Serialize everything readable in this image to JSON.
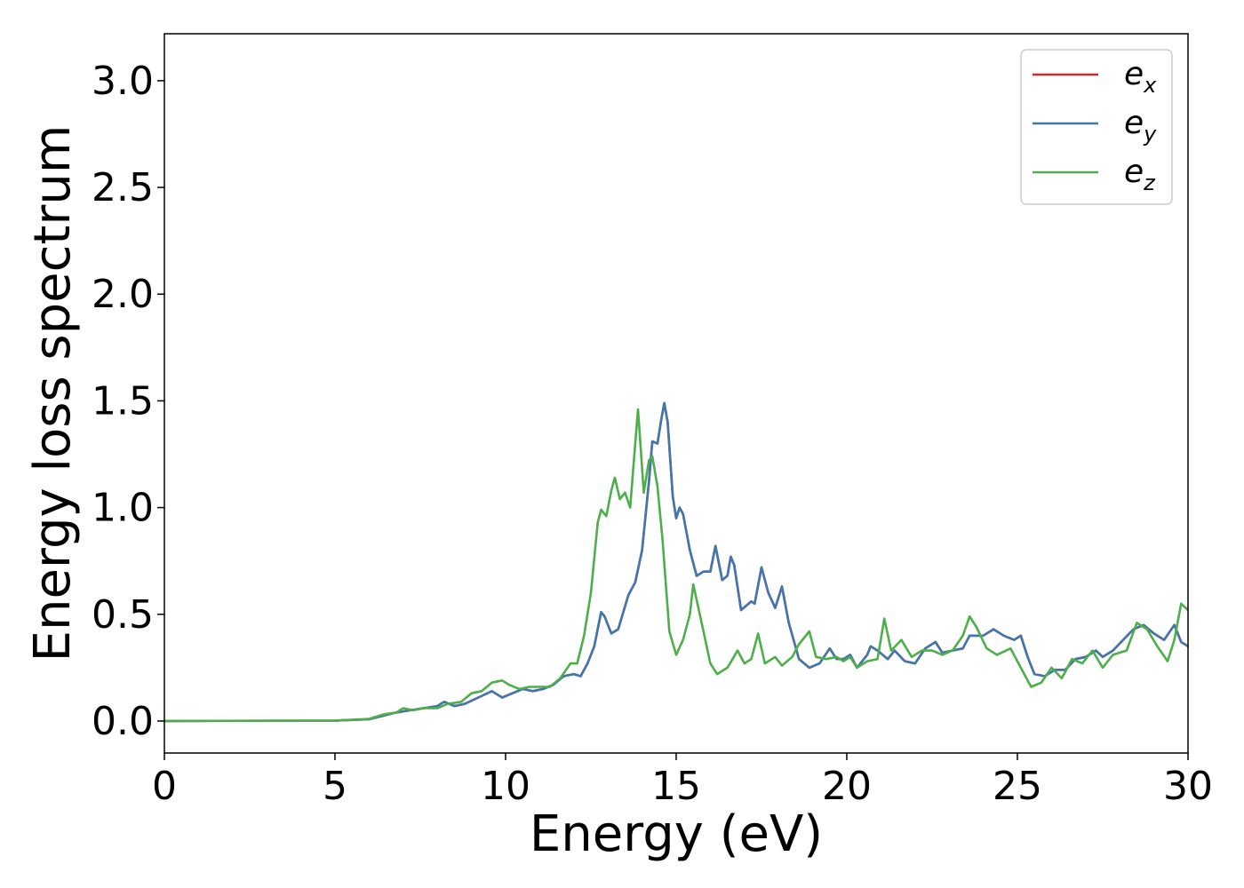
{
  "chart_data": {
    "type": "line",
    "title": "",
    "xlabel": "Energy (eV)",
    "ylabel": "Energy loss spectrum",
    "xlim": [
      0,
      30
    ],
    "ylim": [
      -0.15,
      3.22
    ],
    "x_ticks": [
      0,
      5,
      10,
      15,
      20,
      25,
      30
    ],
    "x_tick_labels": [
      "0",
      "5",
      "10",
      "15",
      "20",
      "25",
      "30"
    ],
    "y_ticks": [
      0.0,
      0.5,
      1.0,
      1.5,
      2.0,
      2.5,
      3.0
    ],
    "y_tick_labels": [
      "0.0",
      "0.5",
      "1.0",
      "1.5",
      "2.0",
      "2.5",
      "3.0"
    ],
    "grid": false,
    "legend_position": "top-right",
    "legend": [
      {
        "base": "e",
        "sub": "x",
        "color": "#d62728"
      },
      {
        "base": "e",
        "sub": "y",
        "color": "#3f77ae"
      },
      {
        "base": "e",
        "sub": "z",
        "color": "#4daf4a"
      }
    ],
    "series": [
      {
        "key": "ex",
        "color": "#d62728",
        "points": [
          [
            0,
            0.0
          ],
          [
            5,
            0.002
          ],
          [
            6,
            0.008
          ],
          [
            6.3,
            0.02
          ],
          [
            6.8,
            0.04
          ],
          [
            7.2,
            0.05
          ],
          [
            7.6,
            0.06
          ],
          [
            8.0,
            0.07
          ],
          [
            8.2,
            0.09
          ],
          [
            8.5,
            0.07
          ],
          [
            8.8,
            0.08
          ],
          [
            9.2,
            0.11
          ],
          [
            9.6,
            0.14
          ],
          [
            9.9,
            0.11
          ],
          [
            10.2,
            0.13
          ],
          [
            10.5,
            0.15
          ],
          [
            10.8,
            0.14
          ],
          [
            11.1,
            0.15
          ],
          [
            11.4,
            0.17
          ],
          [
            11.7,
            0.21
          ],
          [
            12.0,
            0.22
          ],
          [
            12.2,
            0.21
          ],
          [
            12.4,
            0.27
          ],
          [
            12.6,
            0.35
          ],
          [
            12.8,
            0.51
          ],
          [
            12.9,
            0.49
          ],
          [
            13.1,
            0.41
          ],
          [
            13.3,
            0.43
          ],
          [
            13.6,
            0.59
          ],
          [
            13.8,
            0.65
          ],
          [
            14.0,
            0.8
          ],
          [
            14.2,
            1.12
          ],
          [
            14.3,
            1.31
          ],
          [
            14.45,
            1.3
          ],
          [
            14.55,
            1.4
          ],
          [
            14.65,
            1.49
          ],
          [
            14.75,
            1.4
          ],
          [
            14.9,
            1.05
          ],
          [
            15.0,
            0.95
          ],
          [
            15.1,
            1.0
          ],
          [
            15.2,
            0.97
          ],
          [
            15.4,
            0.8
          ],
          [
            15.6,
            0.68
          ],
          [
            15.8,
            0.7
          ],
          [
            16.0,
            0.7
          ],
          [
            16.15,
            0.82
          ],
          [
            16.35,
            0.66
          ],
          [
            16.5,
            0.68
          ],
          [
            16.6,
            0.77
          ],
          [
            16.7,
            0.73
          ],
          [
            16.9,
            0.52
          ],
          [
            17.2,
            0.56
          ],
          [
            17.3,
            0.55
          ],
          [
            17.5,
            0.72
          ],
          [
            17.7,
            0.6
          ],
          [
            17.9,
            0.53
          ],
          [
            18.1,
            0.63
          ],
          [
            18.3,
            0.46
          ],
          [
            18.6,
            0.29
          ],
          [
            18.9,
            0.25
          ],
          [
            19.2,
            0.27
          ],
          [
            19.5,
            0.34
          ],
          [
            19.7,
            0.29
          ],
          [
            19.9,
            0.29
          ],
          [
            20.1,
            0.31
          ],
          [
            20.3,
            0.25
          ],
          [
            20.6,
            0.31
          ],
          [
            20.7,
            0.35
          ],
          [
            20.9,
            0.33
          ],
          [
            21.2,
            0.29
          ],
          [
            21.4,
            0.33
          ],
          [
            21.7,
            0.28
          ],
          [
            22.0,
            0.27
          ],
          [
            22.3,
            0.34
          ],
          [
            22.6,
            0.37
          ],
          [
            22.8,
            0.32
          ],
          [
            23.1,
            0.33
          ],
          [
            23.4,
            0.34
          ],
          [
            23.6,
            0.4
          ],
          [
            24.0,
            0.4
          ],
          [
            24.3,
            0.43
          ],
          [
            24.6,
            0.4
          ],
          [
            24.9,
            0.38
          ],
          [
            25.1,
            0.4
          ],
          [
            25.3,
            0.3
          ],
          [
            25.5,
            0.22
          ],
          [
            25.8,
            0.21
          ],
          [
            26.1,
            0.24
          ],
          [
            26.4,
            0.24
          ],
          [
            26.7,
            0.29
          ],
          [
            27.0,
            0.3
          ],
          [
            27.3,
            0.33
          ],
          [
            27.5,
            0.3
          ],
          [
            27.8,
            0.33
          ],
          [
            28.1,
            0.38
          ],
          [
            28.4,
            0.43
          ],
          [
            28.7,
            0.45
          ],
          [
            29.0,
            0.41
          ],
          [
            29.3,
            0.38
          ],
          [
            29.6,
            0.45
          ],
          [
            29.8,
            0.37
          ],
          [
            30.0,
            0.35
          ]
        ]
      },
      {
        "key": "ey",
        "color": "#3f77ae",
        "points": [
          [
            0,
            0.0
          ],
          [
            5,
            0.002
          ],
          [
            6,
            0.008
          ],
          [
            6.3,
            0.02
          ],
          [
            6.8,
            0.04
          ],
          [
            7.2,
            0.05
          ],
          [
            7.6,
            0.06
          ],
          [
            8.0,
            0.07
          ],
          [
            8.2,
            0.09
          ],
          [
            8.5,
            0.07
          ],
          [
            8.8,
            0.08
          ],
          [
            9.2,
            0.11
          ],
          [
            9.6,
            0.14
          ],
          [
            9.9,
            0.11
          ],
          [
            10.2,
            0.13
          ],
          [
            10.5,
            0.15
          ],
          [
            10.8,
            0.14
          ],
          [
            11.1,
            0.15
          ],
          [
            11.4,
            0.17
          ],
          [
            11.7,
            0.21
          ],
          [
            12.0,
            0.22
          ],
          [
            12.2,
            0.21
          ],
          [
            12.4,
            0.27
          ],
          [
            12.6,
            0.35
          ],
          [
            12.8,
            0.51
          ],
          [
            12.9,
            0.49
          ],
          [
            13.1,
            0.41
          ],
          [
            13.3,
            0.43
          ],
          [
            13.6,
            0.59
          ],
          [
            13.8,
            0.65
          ],
          [
            14.0,
            0.8
          ],
          [
            14.2,
            1.12
          ],
          [
            14.3,
            1.31
          ],
          [
            14.45,
            1.3
          ],
          [
            14.55,
            1.4
          ],
          [
            14.65,
            1.49
          ],
          [
            14.75,
            1.4
          ],
          [
            14.9,
            1.05
          ],
          [
            15.0,
            0.95
          ],
          [
            15.1,
            1.0
          ],
          [
            15.2,
            0.97
          ],
          [
            15.4,
            0.8
          ],
          [
            15.6,
            0.68
          ],
          [
            15.8,
            0.7
          ],
          [
            16.0,
            0.7
          ],
          [
            16.15,
            0.82
          ],
          [
            16.35,
            0.66
          ],
          [
            16.5,
            0.68
          ],
          [
            16.6,
            0.77
          ],
          [
            16.7,
            0.73
          ],
          [
            16.9,
            0.52
          ],
          [
            17.2,
            0.56
          ],
          [
            17.3,
            0.55
          ],
          [
            17.5,
            0.72
          ],
          [
            17.7,
            0.6
          ],
          [
            17.9,
            0.53
          ],
          [
            18.1,
            0.63
          ],
          [
            18.3,
            0.46
          ],
          [
            18.6,
            0.29
          ],
          [
            18.9,
            0.25
          ],
          [
            19.2,
            0.27
          ],
          [
            19.5,
            0.34
          ],
          [
            19.7,
            0.29
          ],
          [
            19.9,
            0.29
          ],
          [
            20.1,
            0.31
          ],
          [
            20.3,
            0.25
          ],
          [
            20.6,
            0.31
          ],
          [
            20.7,
            0.35
          ],
          [
            20.9,
            0.33
          ],
          [
            21.2,
            0.29
          ],
          [
            21.4,
            0.33
          ],
          [
            21.7,
            0.28
          ],
          [
            22.0,
            0.27
          ],
          [
            22.3,
            0.34
          ],
          [
            22.6,
            0.37
          ],
          [
            22.8,
            0.32
          ],
          [
            23.1,
            0.33
          ],
          [
            23.4,
            0.34
          ],
          [
            23.6,
            0.4
          ],
          [
            24.0,
            0.4
          ],
          [
            24.3,
            0.43
          ],
          [
            24.6,
            0.4
          ],
          [
            24.9,
            0.38
          ],
          [
            25.1,
            0.4
          ],
          [
            25.3,
            0.3
          ],
          [
            25.5,
            0.22
          ],
          [
            25.8,
            0.21
          ],
          [
            26.1,
            0.24
          ],
          [
            26.4,
            0.24
          ],
          [
            26.7,
            0.29
          ],
          [
            27.0,
            0.3
          ],
          [
            27.3,
            0.33
          ],
          [
            27.5,
            0.3
          ],
          [
            27.8,
            0.33
          ],
          [
            28.1,
            0.38
          ],
          [
            28.4,
            0.43
          ],
          [
            28.7,
            0.45
          ],
          [
            29.0,
            0.41
          ],
          [
            29.3,
            0.38
          ],
          [
            29.6,
            0.45
          ],
          [
            29.8,
            0.37
          ],
          [
            30.0,
            0.35
          ]
        ]
      },
      {
        "key": "ez",
        "color": "#4daf4a",
        "points": [
          [
            0,
            0.0
          ],
          [
            5,
            0.002
          ],
          [
            6,
            0.01
          ],
          [
            6.4,
            0.03
          ],
          [
            6.8,
            0.04
          ],
          [
            7.0,
            0.06
          ],
          [
            7.3,
            0.05
          ],
          [
            7.6,
            0.06
          ],
          [
            8.0,
            0.06
          ],
          [
            8.3,
            0.08
          ],
          [
            8.7,
            0.09
          ],
          [
            9.0,
            0.13
          ],
          [
            9.3,
            0.14
          ],
          [
            9.6,
            0.18
          ],
          [
            9.9,
            0.19
          ],
          [
            10.1,
            0.17
          ],
          [
            10.4,
            0.15
          ],
          [
            10.7,
            0.16
          ],
          [
            11.0,
            0.16
          ],
          [
            11.3,
            0.16
          ],
          [
            11.6,
            0.2
          ],
          [
            11.9,
            0.27
          ],
          [
            12.1,
            0.27
          ],
          [
            12.3,
            0.4
          ],
          [
            12.5,
            0.6
          ],
          [
            12.7,
            0.93
          ],
          [
            12.8,
            0.99
          ],
          [
            12.95,
            0.96
          ],
          [
            13.1,
            1.08
          ],
          [
            13.2,
            1.14
          ],
          [
            13.35,
            1.04
          ],
          [
            13.5,
            1.07
          ],
          [
            13.65,
            1.0
          ],
          [
            13.8,
            1.3
          ],
          [
            13.88,
            1.46
          ],
          [
            13.95,
            1.3
          ],
          [
            14.05,
            1.07
          ],
          [
            14.2,
            1.22
          ],
          [
            14.3,
            1.24
          ],
          [
            14.45,
            1.1
          ],
          [
            14.6,
            0.85
          ],
          [
            14.8,
            0.42
          ],
          [
            15.0,
            0.31
          ],
          [
            15.2,
            0.38
          ],
          [
            15.4,
            0.5
          ],
          [
            15.5,
            0.64
          ],
          [
            15.65,
            0.53
          ],
          [
            15.8,
            0.42
          ],
          [
            16.0,
            0.27
          ],
          [
            16.2,
            0.22
          ],
          [
            16.5,
            0.25
          ],
          [
            16.8,
            0.33
          ],
          [
            17.0,
            0.27
          ],
          [
            17.2,
            0.29
          ],
          [
            17.4,
            0.41
          ],
          [
            17.6,
            0.27
          ],
          [
            17.9,
            0.3
          ],
          [
            18.1,
            0.26
          ],
          [
            18.4,
            0.3
          ],
          [
            18.6,
            0.36
          ],
          [
            18.9,
            0.42
          ],
          [
            19.1,
            0.3
          ],
          [
            19.4,
            0.29
          ],
          [
            19.7,
            0.3
          ],
          [
            19.9,
            0.28
          ],
          [
            20.1,
            0.3
          ],
          [
            20.3,
            0.25
          ],
          [
            20.6,
            0.28
          ],
          [
            20.9,
            0.29
          ],
          [
            21.1,
            0.48
          ],
          [
            21.3,
            0.33
          ],
          [
            21.6,
            0.38
          ],
          [
            21.9,
            0.3
          ],
          [
            22.2,
            0.33
          ],
          [
            22.5,
            0.33
          ],
          [
            22.8,
            0.31
          ],
          [
            23.1,
            0.33
          ],
          [
            23.4,
            0.4
          ],
          [
            23.6,
            0.49
          ],
          [
            23.8,
            0.44
          ],
          [
            24.1,
            0.34
          ],
          [
            24.4,
            0.31
          ],
          [
            24.8,
            0.34
          ],
          [
            25.1,
            0.25
          ],
          [
            25.4,
            0.16
          ],
          [
            25.7,
            0.18
          ],
          [
            26.0,
            0.25
          ],
          [
            26.3,
            0.2
          ],
          [
            26.6,
            0.29
          ],
          [
            26.9,
            0.27
          ],
          [
            27.2,
            0.33
          ],
          [
            27.5,
            0.25
          ],
          [
            27.8,
            0.31
          ],
          [
            28.2,
            0.33
          ],
          [
            28.5,
            0.46
          ],
          [
            28.8,
            0.43
          ],
          [
            29.1,
            0.35
          ],
          [
            29.4,
            0.28
          ],
          [
            29.6,
            0.38
          ],
          [
            29.8,
            0.55
          ],
          [
            30.0,
            0.52
          ]
        ]
      }
    ]
  }
}
